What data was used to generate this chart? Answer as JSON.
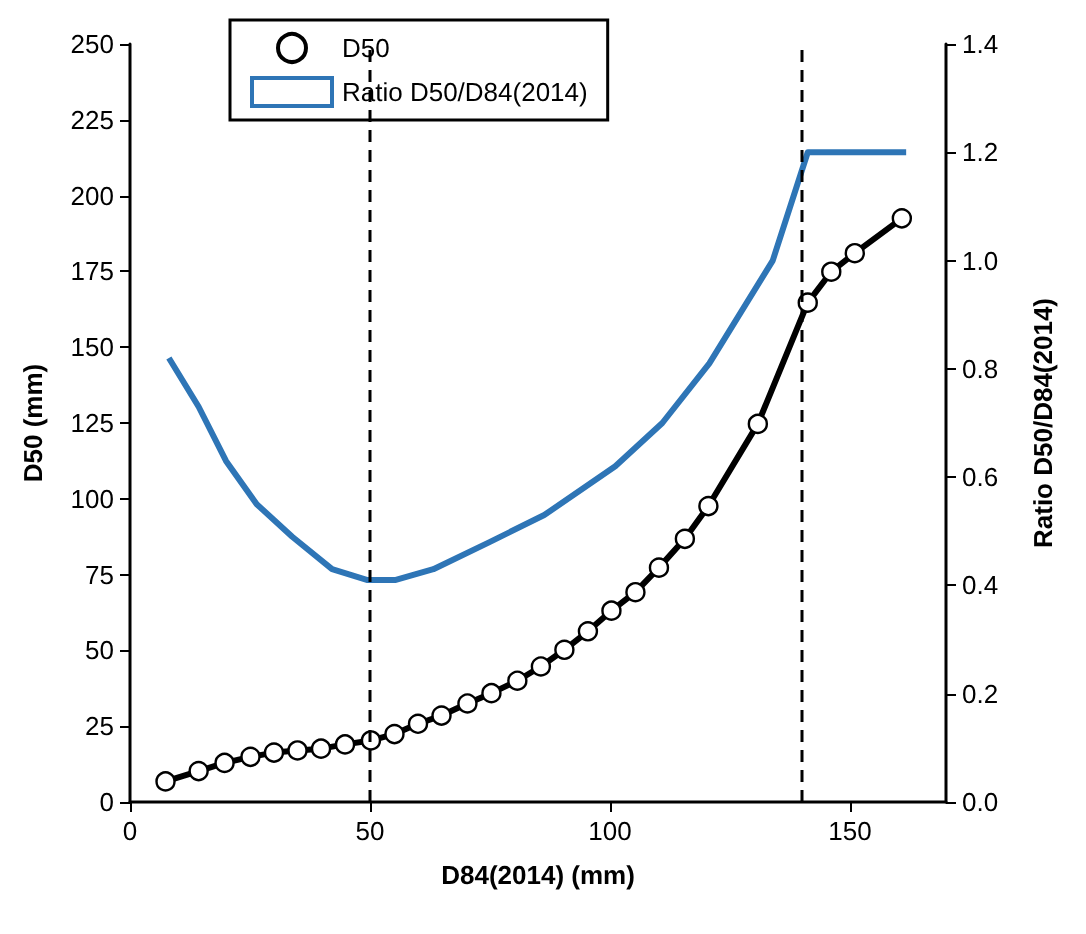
{
  "chart_data": {
    "type": "line",
    "xlabel": "D84(2014) (mm)",
    "ylabel": "D50 (mm)",
    "y2label": "Ratio D50/D84(2014)",
    "xlim": [
      0,
      170
    ],
    "xticks": [
      0,
      50,
      100,
      150
    ],
    "ylim": [
      0,
      250
    ],
    "yticks": [
      0,
      25,
      50,
      75,
      100,
      125,
      150,
      175,
      200,
      225,
      250
    ],
    "y2lim": [
      0,
      1.4
    ],
    "y2ticks": [
      {
        "value": 0,
        "label": "0.0"
      },
      {
        "value": 0.2,
        "label": "0.2"
      },
      {
        "value": 0.4,
        "label": "0.4"
      },
      {
        "value": 0.6,
        "label": "0.6"
      },
      {
        "value": 0.8,
        "label": "0.8"
      },
      {
        "value": 1,
        "label": "1.0"
      },
      {
        "value": 1.2,
        "label": "1.2"
      },
      {
        "value": 1.4,
        "label": "1.4"
      }
    ],
    "grid": false,
    "legend": "top left",
    "series": [
      {
        "name": "D50",
        "color": "#000000",
        "marker": "circle",
        "x": [
          7.4,
          14.3,
          19.7,
          25.1,
          30,
          34.9,
          39.8,
          44.8,
          50.2,
          55.1,
          60,
          64.9,
          70.3,
          75.3,
          80.7,
          85.6,
          90.5,
          95.4,
          100.3,
          105.3,
          110.2,
          115.6,
          120.5,
          130.8,
          141.2,
          146.1,
          151,
          160.8
        ],
        "values": [
          6.8,
          10.2,
          12.9,
          14.9,
          16.3,
          17,
          17.6,
          19,
          20.3,
          22.4,
          25.8,
          28.5,
          32.5,
          35.9,
          40,
          44.7,
          50.2,
          56.3,
          63.1,
          69.2,
          77.3,
          86.8,
          97.6,
          124.7,
          164.7,
          174.9,
          181,
          192.5
        ]
      },
      {
        "name": "Ratio D50/D84(2014)",
        "color": "#2e75b6",
        "marker": "none",
        "axis": "y2",
        "x": [
          8.1,
          14.3,
          20,
          26.4,
          33.8,
          42.1,
          49.5,
          55.2,
          63.2,
          74.9,
          86.3,
          101.1,
          110.9,
          120.7,
          133.9,
          141.2,
          161.7
        ],
        "values": [
          0.82,
          0.73,
          0.63,
          0.55,
          0.49,
          0.43,
          0.41,
          0.41,
          0.43,
          0.48,
          0.53,
          0.62,
          0.7,
          0.81,
          1.0,
          1.2,
          1.2
        ]
      }
    ],
    "ref_lines": [
      {
        "axis": "x",
        "value": 50,
        "line_style": "dashed",
        "color": "#000000"
      },
      {
        "axis": "x",
        "value": 140,
        "line_style": "dashed",
        "color": "#000000"
      }
    ]
  }
}
